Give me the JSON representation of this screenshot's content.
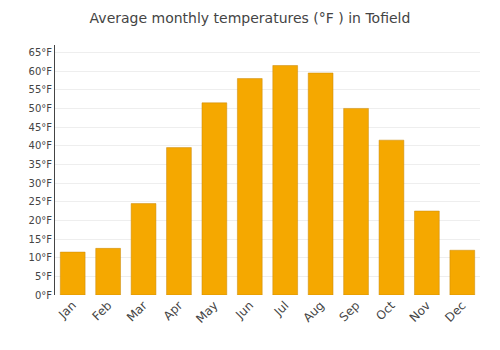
{
  "chart_data": {
    "type": "bar",
    "title": "Average monthly temperatures (°F ) in Tofield",
    "categories": [
      "Jan",
      "Feb",
      "Mar",
      "Apr",
      "May",
      "Jun",
      "Jul",
      "Aug",
      "Sep",
      "Oct",
      "Nov",
      "Dec"
    ],
    "values": [
      11.5,
      12.5,
      24.5,
      39.5,
      51.5,
      58.0,
      61.5,
      59.5,
      50.0,
      41.5,
      22.5,
      12.0
    ],
    "color": "#F5A800",
    "ylim": [
      0,
      67
    ],
    "yticks": [
      {
        "value": 0,
        "label": "0°F"
      },
      {
        "value": 5,
        "label": "5°F"
      },
      {
        "value": 10,
        "label": "10°F"
      },
      {
        "value": 15,
        "label": "15°F"
      },
      {
        "value": 20,
        "label": "20°F"
      },
      {
        "value": 25,
        "label": "25°F"
      },
      {
        "value": 30,
        "label": "30°F"
      },
      {
        "value": 35,
        "label": "35°F"
      },
      {
        "value": 40,
        "label": "40°F"
      },
      {
        "value": 45,
        "label": "45°F"
      },
      {
        "value": 50,
        "label": "50°F"
      },
      {
        "value": 55,
        "label": "55°F"
      },
      {
        "value": 60,
        "label": "60°F"
      },
      {
        "value": 65,
        "label": "65°F"
      }
    ],
    "grid": true
  }
}
